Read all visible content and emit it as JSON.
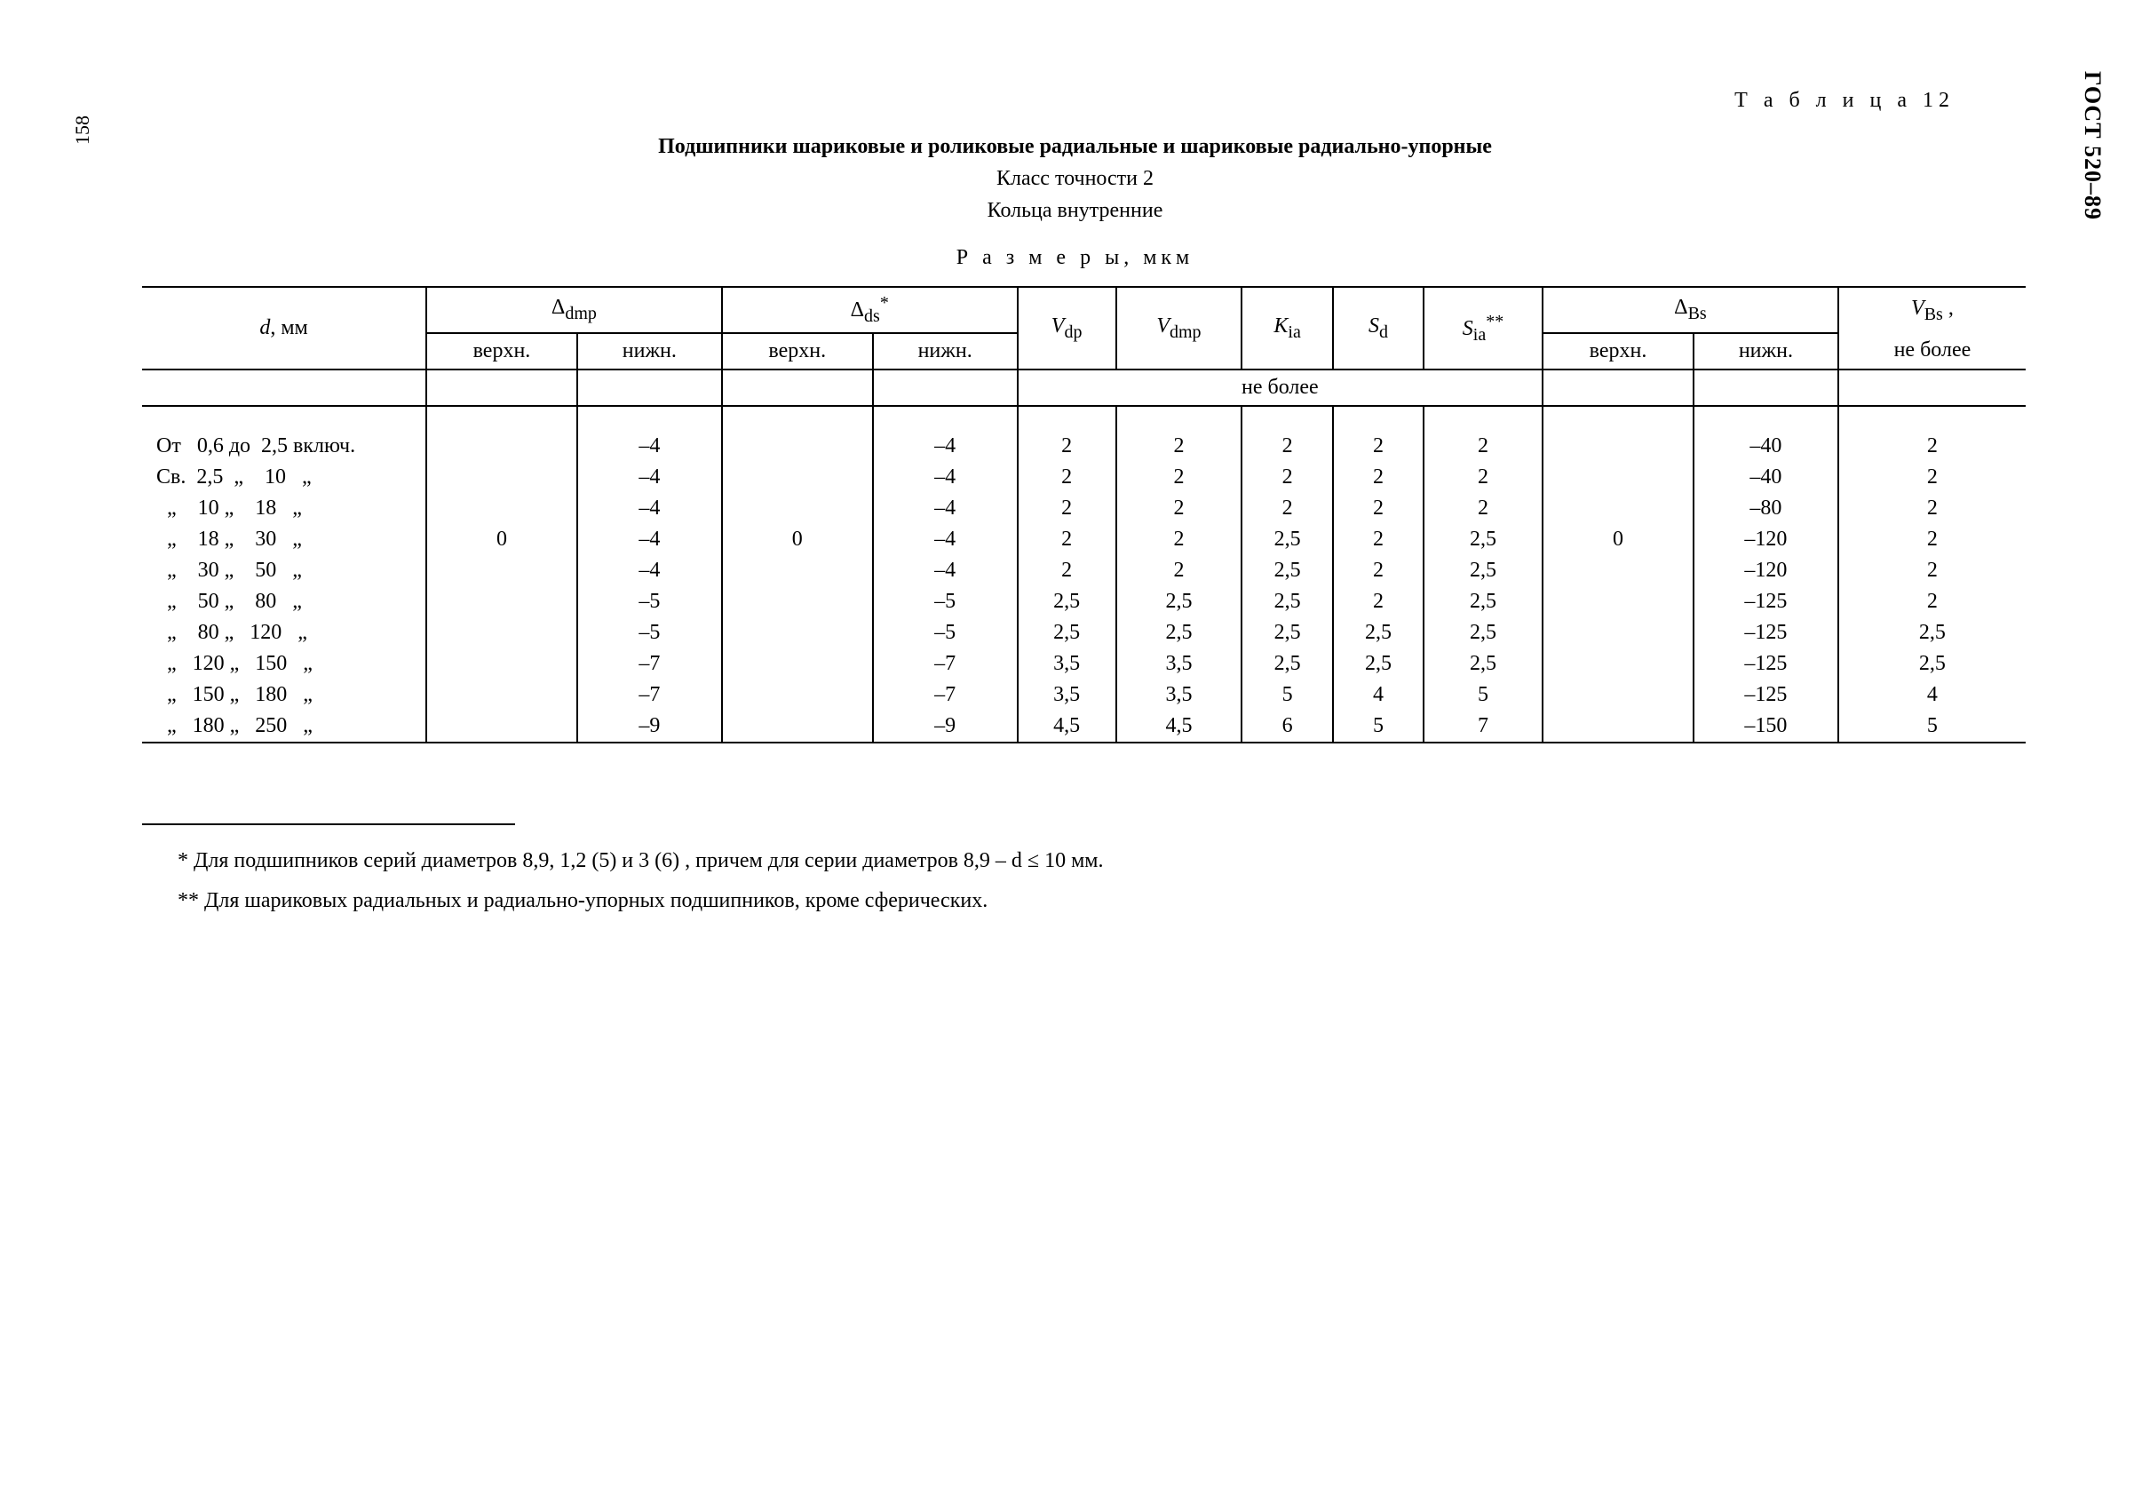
{
  "gost": "ГОСТ 520–89",
  "page_number": "158",
  "table_label": "Т а б л и ц а 12",
  "title": "Подшипники шариковые и роликовые радиальные и шариковые радиально-упорные",
  "subtitle1": "Класс точности 2",
  "subtitle2": "Кольца внутренние",
  "dimensions_label": "Р а з м е р ы,  мкм",
  "headers": {
    "d": "d, мм",
    "delta_dmp": "Δdmp",
    "delta_ds": "Δds",
    "delta_ds_mark": "*",
    "vdp": "Vdp",
    "vdmp": "Vdmp",
    "kia": "Kia",
    "sd": "Sd",
    "sia": "Sia",
    "sia_mark": "**",
    "delta_bs": "ΔBs",
    "vbs": "VBs ,",
    "upper": "верхн.",
    "lower": "нижн.",
    "not_more": "не более"
  },
  "brace_vals": {
    "delta_dmp_upper": "0",
    "delta_ds_upper": "0",
    "delta_bs_upper": "0"
  },
  "rows": [
    {
      "range": "От   0,6 до  2,5 включ.",
      "dmp_lo": "–4",
      "ds_lo": "–4",
      "vdp": "2",
      "vdmp": "2",
      "kia": "2",
      "sd": "2",
      "sia": "2",
      "bs_lo": "–40",
      "vbs": "2"
    },
    {
      "range": "Св.  2,5  „    10   „",
      "dmp_lo": "–4",
      "ds_lo": "–4",
      "vdp": "2",
      "vdmp": "2",
      "kia": "2",
      "sd": "2",
      "sia": "2",
      "bs_lo": "–40",
      "vbs": "2"
    },
    {
      "range": "  „    10 „    18   „",
      "dmp_lo": "–4",
      "ds_lo": "–4",
      "vdp": "2",
      "vdmp": "2",
      "kia": "2",
      "sd": "2",
      "sia": "2",
      "bs_lo": "–80",
      "vbs": "2"
    },
    {
      "range": "  „    18 „    30   „",
      "dmp_lo": "–4",
      "ds_lo": "–4",
      "vdp": "2",
      "vdmp": "2",
      "kia": "2,5",
      "sd": "2",
      "sia": "2,5",
      "bs_lo": "–120",
      "vbs": "2"
    },
    {
      "range": "  „    30 „    50   „",
      "dmp_lo": "–4",
      "ds_lo": "–4",
      "vdp": "2",
      "vdmp": "2",
      "kia": "2,5",
      "sd": "2",
      "sia": "2,5",
      "bs_lo": "–120",
      "vbs": "2"
    },
    {
      "range": "  „    50 „    80   „",
      "dmp_lo": "–5",
      "ds_lo": "–5",
      "vdp": "2,5",
      "vdmp": "2,5",
      "kia": "2,5",
      "sd": "2",
      "sia": "2,5",
      "bs_lo": "–125",
      "vbs": "2"
    },
    {
      "range": "  „    80 „   120   „",
      "dmp_lo": "–5",
      "ds_lo": "–5",
      "vdp": "2,5",
      "vdmp": "2,5",
      "kia": "2,5",
      "sd": "2,5",
      "sia": "2,5",
      "bs_lo": "–125",
      "vbs": "2,5"
    },
    {
      "range": "  „   120 „   150   „",
      "dmp_lo": "–7",
      "ds_lo": "–7",
      "vdp": "3,5",
      "vdmp": "3,5",
      "kia": "2,5",
      "sd": "2,5",
      "sia": "2,5",
      "bs_lo": "–125",
      "vbs": "2,5"
    },
    {
      "range": "  „   150 „   180   „",
      "dmp_lo": "–7",
      "ds_lo": "–7",
      "vdp": "3,5",
      "vdmp": "3,5",
      "kia": "5",
      "sd": "4",
      "sia": "5",
      "bs_lo": "–125",
      "vbs": "4"
    },
    {
      "range": "  „   180 „   250   „",
      "dmp_lo": "–9",
      "ds_lo": "–9",
      "vdp": "4,5",
      "vdmp": "4,5",
      "kia": "6",
      "sd": "5",
      "sia": "7",
      "bs_lo": "–150",
      "vbs": "5"
    }
  ],
  "footnote1": "* Для подшипников серий диаметров 8,9, 1,2 (5) и 3 (6) , причем для серии диаметров 8,9 – d ≤ 10 мм.",
  "footnote2": "** Для шариковых радиальных и радиально-упорных подшипников, кроме сферических."
}
